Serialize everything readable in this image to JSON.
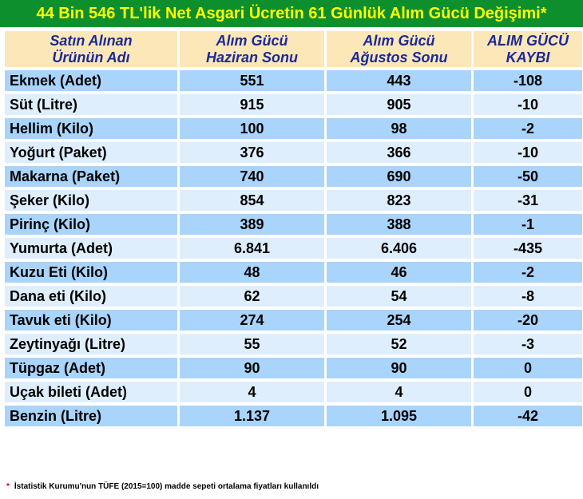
{
  "title": "44 Bin 546 TL'lik Net Asgari Ücretin 61 Günlük Alım Gücü Değişimi*",
  "headers": {
    "product": [
      "Satın Alınan",
      "Ürünün Adı"
    ],
    "june": [
      "Alım Gücü",
      "Haziran Sonu"
    ],
    "august": [
      "Alım Gücü",
      "Ağustos Sonu"
    ],
    "loss": [
      "ALIM GÜCÜ",
      "KAYBI"
    ]
  },
  "rows": [
    {
      "name": "Ekmek (Adet)",
      "june": "551",
      "august": "443",
      "loss": "-108"
    },
    {
      "name": "Süt (Litre)",
      "june": "915",
      "august": "905",
      "loss": "-10"
    },
    {
      "name": "Hellim (Kilo)",
      "june": "100",
      "august": "98",
      "loss": "-2"
    },
    {
      "name": "Yoğurt (Paket)",
      "june": "376",
      "august": "366",
      "loss": "-10"
    },
    {
      "name": "Makarna (Paket)",
      "june": "740",
      "august": "690",
      "loss": "-50"
    },
    {
      "name": "Şeker (Kilo)",
      "june": "854",
      "august": "823",
      "loss": "-31"
    },
    {
      "name": "Pirinç (Kilo)",
      "june": "389",
      "august": "388",
      "loss": "-1"
    },
    {
      "name": "Yumurta (Adet)",
      "june": "6.841",
      "august": "6.406",
      "loss": "-435"
    },
    {
      "name": "Kuzu Eti (Kilo)",
      "june": "48",
      "august": "46",
      "loss": "-2"
    },
    {
      "name": "Dana eti (Kilo)",
      "june": "62",
      "august": "54",
      "loss": "-8"
    },
    {
      "name": "Tavuk eti (Kilo)",
      "june": "274",
      "august": "254",
      "loss": "-20"
    },
    {
      "name": "Zeytinyağı (Litre)",
      "june": "55",
      "august": "52",
      "loss": "-3"
    },
    {
      "name": "Tüpgaz (Adet)",
      "june": "90",
      "august": "90",
      "loss": "0"
    },
    {
      "name": "Uçak bileti (Adet)",
      "june": "4",
      "august": "4",
      "loss": "0"
    },
    {
      "name": "Benzin (Litre)",
      "june": "1.137",
      "august": "1.095",
      "loss": "-42"
    }
  ],
  "footnote": {
    "marker": "*",
    "text": "İstatistik Kurumu'nun TÜFE (2015=100) madde sepeti ortalama fiyatları kullanıldı"
  },
  "colors": {
    "title_bg": "#0d8f2e",
    "title_text": "#ffff00",
    "header_bg": "#fce7b8",
    "header_text": "#1b2a96",
    "row_dark": "#a9d4fb",
    "row_light": "#deeefd",
    "footnote_marker": "#e00000"
  }
}
